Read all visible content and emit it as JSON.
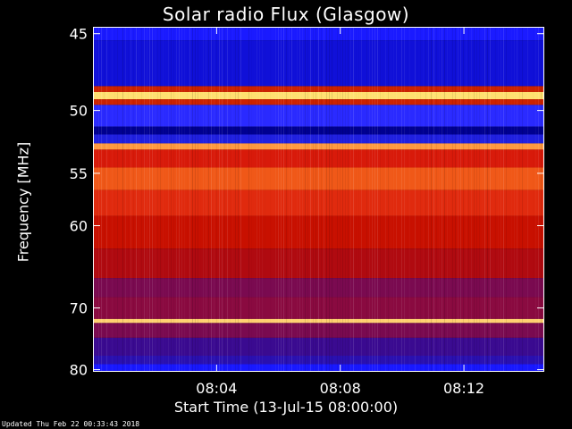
{
  "chart_data": {
    "type": "heatmap",
    "title": "Solar radio Flux (Glasgow)",
    "ylabel": "Frequency [MHz]",
    "xlabel": "Start Time (13-Jul-15 08:00:00)",
    "y_ticks": [
      45,
      50,
      55,
      60,
      70,
      80
    ],
    "x_ticks": [
      "08:04",
      "08:08",
      "08:12"
    ],
    "x_tick_minutes": [
      4,
      8,
      12
    ],
    "xlim_minutes": [
      0,
      14.6
    ],
    "ylim": [
      44.6,
      80.4
    ],
    "y_scale": "reciprocal",
    "bands": [
      {
        "from": 44.6,
        "to": 45.4,
        "color": "#1a1aff"
      },
      {
        "from": 45.4,
        "to": 48.3,
        "color": "#1010d8"
      },
      {
        "from": 48.3,
        "to": 48.7,
        "color": "#cc2200"
      },
      {
        "from": 48.7,
        "to": 49.2,
        "color": "#ffe070"
      },
      {
        "from": 49.2,
        "to": 49.6,
        "color": "#cc2200"
      },
      {
        "from": 49.6,
        "to": 51.2,
        "color": "#2a2aff"
      },
      {
        "from": 51.2,
        "to": 51.8,
        "color": "#000090"
      },
      {
        "from": 51.8,
        "to": 52.5,
        "color": "#2020e0"
      },
      {
        "from": 52.5,
        "to": 53.0,
        "color": "#ff9a40"
      },
      {
        "from": 53.0,
        "to": 54.5,
        "color": "#d81a0a"
      },
      {
        "from": 54.5,
        "to": 56.5,
        "color": "#f05818"
      },
      {
        "from": 56.5,
        "to": 59.0,
        "color": "#e02a0e"
      },
      {
        "from": 59.0,
        "to": 62.5,
        "color": "#c81000"
      },
      {
        "from": 62.5,
        "to": 66.0,
        "color": "#b00a10"
      },
      {
        "from": 66.0,
        "to": 68.5,
        "color": "#7a0a50"
      },
      {
        "from": 68.5,
        "to": 71.6,
        "color": "#8a0a40"
      },
      {
        "from": 71.6,
        "to": 72.2,
        "color": "#ffd070"
      },
      {
        "from": 72.2,
        "to": 74.5,
        "color": "#7a0a50"
      },
      {
        "from": 74.5,
        "to": 77.5,
        "color": "#3a0a90"
      },
      {
        "from": 77.5,
        "to": 79.0,
        "color": "#2a10b0"
      },
      {
        "from": 79.0,
        "to": 80.4,
        "color": "#1818ff"
      }
    ]
  },
  "footer": "Updated Thu Feb 22 00:33:43 2018"
}
